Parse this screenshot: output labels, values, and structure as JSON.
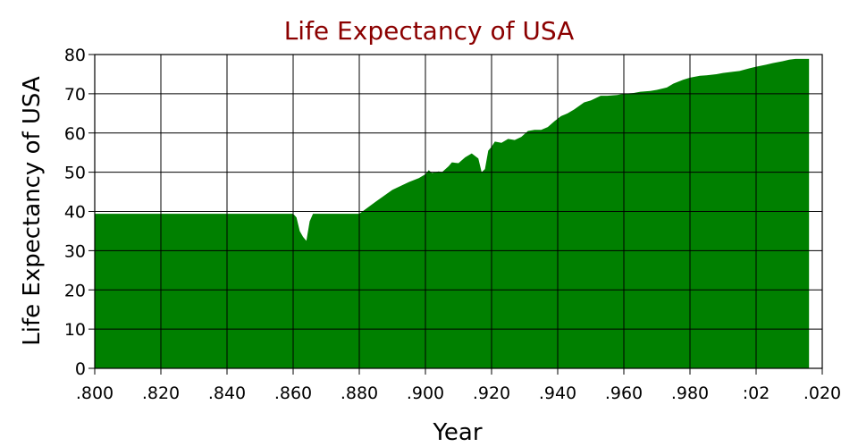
{
  "chart_data": {
    "type": "area",
    "title": "Life Expectancy of USA",
    "xlabel": "Year",
    "ylabel": "Life Expectancy of USA",
    "xlim": [
      1800,
      2020
    ],
    "ylim": [
      0,
      80
    ],
    "x_ticks": [
      1800,
      1820,
      1840,
      1860,
      1880,
      1900,
      1920,
      1940,
      1960,
      1980,
      2000,
      2020
    ],
    "x_tick_labels": [
      ".800",
      ".820",
      ".840",
      ".860",
      ".880",
      ".900",
      ".920",
      ".940",
      ".960",
      ".980",
      ":02",
      ".020"
    ],
    "y_ticks": [
      0,
      10,
      20,
      30,
      40,
      50,
      60,
      70,
      80
    ],
    "y_tick_labels": [
      "0",
      "10",
      "20",
      "30",
      "40",
      "50",
      "60",
      "70",
      "80"
    ],
    "grid": true,
    "colors": {
      "fill": "#008000",
      "title": "#8b0000"
    },
    "series": [
      {
        "x": [
          1800,
          1860,
          1861,
          1862,
          1863,
          1864,
          1865,
          1866,
          1867,
          1880,
          1885,
          1890,
          1895,
          1898,
          1900,
          1901,
          1902,
          1904,
          1905,
          1907,
          1908,
          1910,
          1912,
          1914,
          1916,
          1917,
          1918,
          1919,
          1920,
          1921,
          1923,
          1925,
          1927,
          1929,
          1931,
          1933,
          1935,
          1937,
          1939,
          1941,
          1943,
          1945,
          1948,
          1950,
          1953,
          1955,
          1958,
          1960,
          1963,
          1965,
          1968,
          1970,
          1973,
          1975,
          1978,
          1980,
          1983,
          1985,
          1988,
          1990,
          1993,
          1995,
          1998,
          2000,
          2003,
          2005,
          2008,
          2010,
          2012,
          2014,
          2016
        ],
        "y": [
          39.4,
          39.4,
          38.5,
          35.0,
          33.5,
          32.5,
          37.5,
          39.4,
          39.4,
          39.4,
          42.5,
          45.5,
          47.5,
          48.5,
          49.5,
          50.5,
          49.8,
          50.2,
          50.0,
          51.5,
          52.5,
          52.3,
          53.8,
          54.8,
          53.5,
          50.0,
          50.8,
          55.5,
          56.5,
          57.8,
          57.5,
          58.5,
          58.2,
          59.0,
          60.5,
          60.8,
          60.8,
          61.5,
          63.0,
          64.3,
          65.0,
          66.0,
          67.8,
          68.3,
          69.5,
          69.5,
          69.7,
          70.0,
          70.2,
          70.5,
          70.7,
          71.0,
          71.6,
          72.6,
          73.6,
          74.1,
          74.6,
          74.7,
          75.0,
          75.3,
          75.6,
          75.8,
          76.5,
          76.9,
          77.4,
          77.8,
          78.3,
          78.7,
          78.9,
          78.9,
          78.9
        ]
      }
    ]
  }
}
